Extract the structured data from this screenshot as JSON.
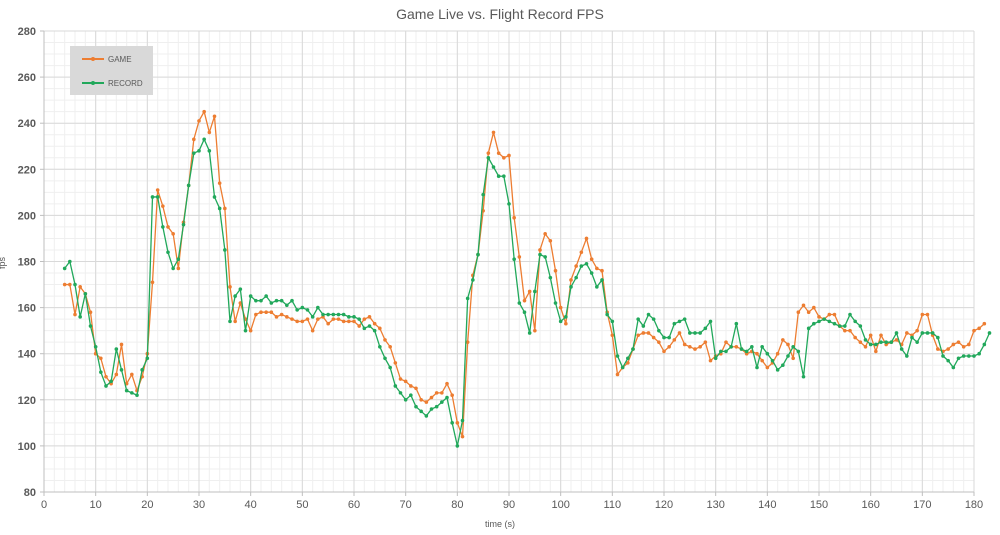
{
  "chart_data": {
    "type": "line",
    "title": "Game Live vs. Flight Record FPS",
    "xlabel": "time (s)",
    "ylabel": "fps",
    "xlim": [
      0,
      180
    ],
    "ylim": [
      80,
      280
    ],
    "x_ticks": [
      0,
      10,
      20,
      30,
      40,
      50,
      60,
      70,
      80,
      90,
      100,
      110,
      120,
      130,
      140,
      150,
      160,
      170,
      180
    ],
    "y_ticks": [
      80,
      100,
      120,
      140,
      160,
      180,
      200,
      220,
      240,
      260,
      280
    ],
    "grid": true,
    "legend_position": "upper-left (inside)",
    "x_start": 4,
    "x_step": 1,
    "series": [
      {
        "name": "GAME",
        "color": "#ED7D31",
        "values": [
          170,
          170,
          157,
          169,
          166,
          158,
          140,
          138,
          130,
          127,
          131,
          144,
          127,
          131,
          124,
          130,
          140,
          171,
          211,
          204,
          195,
          192,
          177,
          197,
          213,
          233,
          241,
          245,
          236,
          243,
          214,
          203,
          169,
          154,
          162,
          155,
          150,
          157,
          158,
          158,
          158,
          156,
          157,
          156,
          155,
          154,
          154,
          155,
          150,
          155,
          156,
          153,
          155,
          155,
          154,
          154,
          154,
          152,
          155,
          156,
          153,
          151,
          146,
          143,
          136,
          129,
          128,
          126,
          125,
          120,
          119,
          121,
          123,
          123,
          127,
          122,
          110,
          104,
          145,
          174,
          183,
          202,
          227,
          236,
          227,
          225,
          226,
          199,
          182,
          163,
          167,
          150,
          185,
          192,
          189,
          176,
          160,
          153,
          172,
          178,
          184,
          190,
          181,
          177,
          176,
          158,
          148,
          131,
          134,
          136,
          142,
          148,
          149,
          149,
          147,
          145,
          141,
          143,
          146,
          149,
          144,
          143,
          142,
          143,
          145,
          137,
          139,
          140,
          145,
          143,
          143,
          142,
          140,
          141,
          140,
          137,
          134,
          136,
          140,
          146,
          144,
          138,
          158,
          161,
          158,
          160,
          156,
          155,
          157,
          157,
          152,
          150,
          150,
          147,
          145,
          143,
          148,
          141,
          148,
          144,
          145,
          146,
          144,
          149,
          148,
          150,
          157,
          157,
          148,
          142,
          141,
          142,
          144,
          145,
          143,
          144,
          150,
          151,
          153
        ]
      },
      {
        "name": "RECORD",
        "color": "#21A85B",
        "values": [
          177,
          180,
          170,
          156,
          166,
          152,
          143,
          132,
          126,
          128,
          142,
          133,
          124,
          123,
          122,
          133,
          138,
          208,
          208,
          195,
          184,
          177,
          181,
          196,
          213,
          227,
          228,
          233,
          228,
          208,
          203,
          185,
          154,
          165,
          168,
          150,
          165,
          163,
          163,
          165,
          162,
          163,
          163,
          161,
          163,
          159,
          160,
          159,
          156,
          160,
          157,
          157,
          157,
          157,
          157,
          156,
          156,
          155,
          151,
          152,
          150,
          143,
          138,
          134,
          126,
          123,
          120,
          122,
          117,
          115,
          113,
          116,
          117,
          119,
          121,
          110,
          100,
          111,
          164,
          172,
          183,
          209,
          225,
          221,
          217,
          217,
          205,
          181,
          162,
          158,
          149,
          167,
          183,
          182,
          173,
          162,
          154,
          156,
          169,
          173,
          178,
          179,
          175,
          169,
          172,
          157,
          154,
          139,
          134,
          138,
          142,
          155,
          152,
          157,
          155,
          150,
          147,
          147,
          153,
          154,
          155,
          149,
          149,
          149,
          151,
          154,
          138,
          141,
          141,
          143,
          153,
          142,
          141,
          143,
          134,
          143,
          140,
          137,
          133,
          135,
          139,
          143,
          141,
          130,
          151,
          153,
          154,
          155,
          154,
          153,
          152,
          152,
          157,
          154,
          152,
          146,
          144,
          144,
          145,
          145,
          145,
          149,
          142,
          139,
          147,
          145,
          149,
          149,
          149,
          147,
          139,
          137,
          134,
          138,
          139,
          139,
          139,
          140,
          144,
          149
        ]
      }
    ]
  },
  "legend": {
    "items": [
      {
        "label": "GAME",
        "color": "#ED7D31"
      },
      {
        "label": "RECORD",
        "color": "#21A85B"
      }
    ]
  }
}
